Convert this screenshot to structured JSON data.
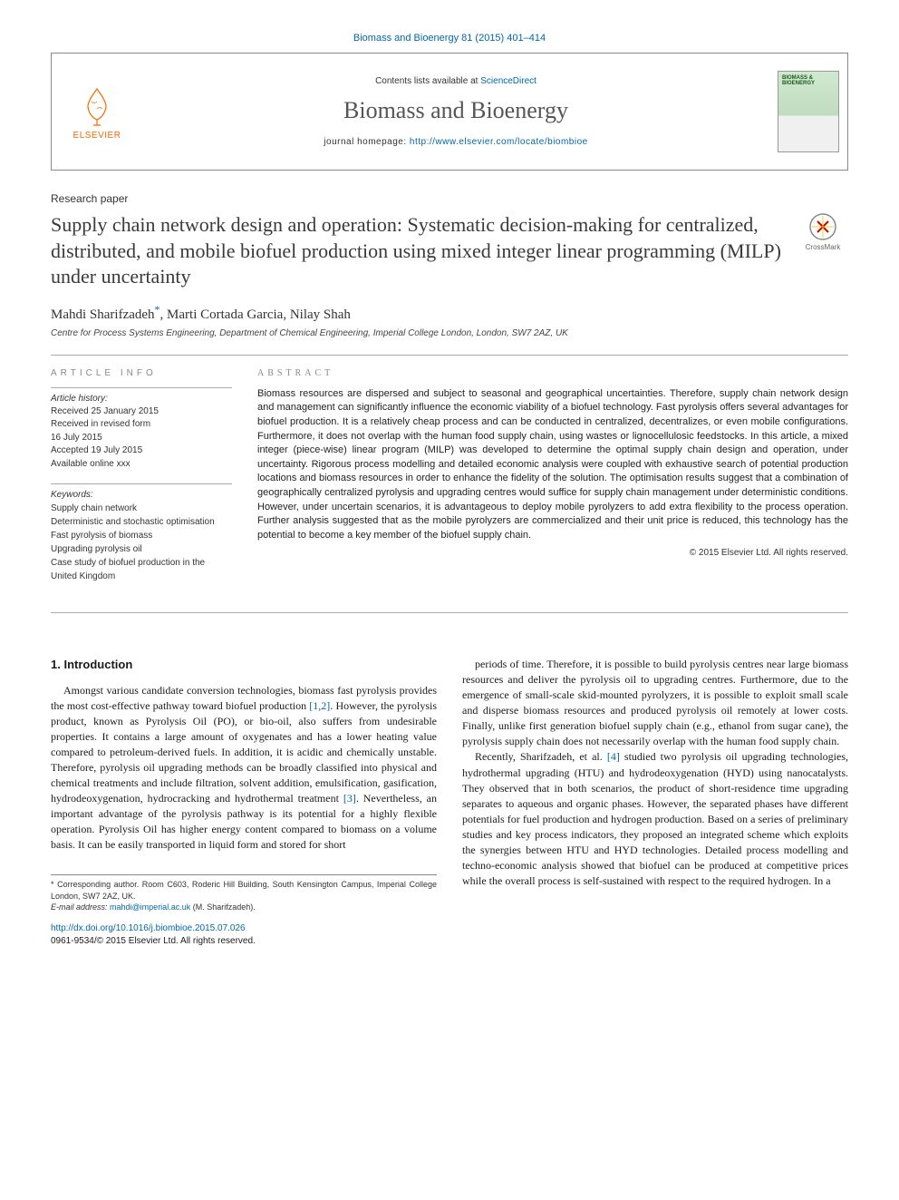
{
  "journal_ref": "Biomass and Bioenergy 81 (2015) 401–414",
  "header": {
    "contents_prefix": "Contents lists available at ",
    "contents_link": "ScienceDirect",
    "journal_name": "Biomass and Bioenergy",
    "homepage_prefix": "journal homepage: ",
    "homepage_url": "http://www.elsevier.com/locate/biombioe",
    "publisher_label": "ELSEVIER",
    "cover_text": "BIOMASS & BIOENERGY"
  },
  "paper_type": "Research paper",
  "title": "Supply chain network design and operation: Systematic decision-making for centralized, distributed, and mobile biofuel production using mixed integer linear programming (MILP) under uncertainty",
  "crossmark_label": "CrossMark",
  "authors_html": "Mahdi Sharifzadeh<span class=\"corr-star\">*</span>, Marti Cortada Garcia, Nilay Shah",
  "affiliation": "Centre for Process Systems Engineering, Department of Chemical Engineering, Imperial College London, London, SW7 2AZ, UK",
  "article_info": {
    "heading": "ARTICLE INFO",
    "history_label": "Article history:",
    "history_lines": [
      "Received 25 January 2015",
      "Received in revised form",
      "16 July 2015",
      "Accepted 19 July 2015",
      "Available online xxx"
    ],
    "keywords_label": "Keywords:",
    "keywords": [
      "Supply chain network",
      "Deterministic and stochastic optimisation",
      "Fast pyrolysis of biomass",
      "Upgrading pyrolysis oil",
      "Case study of biofuel production in the United Kingdom"
    ]
  },
  "abstract": {
    "heading": "ABSTRACT",
    "text": "Biomass resources are dispersed and subject to seasonal and geographical uncertainties. Therefore, supply chain network design and management can significantly influence the economic viability of a biofuel technology. Fast pyrolysis offers several advantages for biofuel production. It is a relatively cheap process and can be conducted in centralized, decentralizes, or even mobile configurations. Furthermore, it does not overlap with the human food supply chain, using wastes or lignocellulosic feedstocks. In this article, a mixed integer (piece-wise) linear program (MILP) was developed to determine the optimal supply chain design and operation, under uncertainty. Rigorous process modelling and detailed economic analysis were coupled with exhaustive search of potential production locations and biomass resources in order to enhance the fidelity of the solution. The optimisation results suggest that a combination of geographically centralized pyrolysis and upgrading centres would suffice for supply chain management under deterministic conditions. However, under uncertain scenarios, it is advantageous to deploy mobile pyrolyzers to add extra flexibility to the process operation. Further analysis suggested that as the mobile pyrolyzers are commercialized and their unit price is reduced, this technology has the potential to become a key member of the biofuel supply chain.",
    "copyright": "© 2015 Elsevier Ltd. All rights reserved."
  },
  "body": {
    "section_heading": "1. Introduction",
    "col1_p1": "Amongst various candidate conversion technologies, biomass fast pyrolysis provides the most cost-effective pathway toward biofuel production <span class=\"cite\">[1,2]</span>. However, the pyrolysis product, known as Pyrolysis Oil (PO), or bio-oil, also suffers from undesirable properties. It contains a large amount of oxygenates and has a lower heating value compared to petroleum-derived fuels. In addition, it is acidic and chemically unstable. Therefore, pyrolysis oil upgrading methods can be broadly classified into physical and chemical treatments and include filtration, solvent addition, emulsification, gasification, hydrodeoxygenation, hydrocracking and hydrothermal treatment <span class=\"cite\">[3]</span>. Nevertheless, an important advantage of the pyrolysis pathway is its potential for a highly flexible operation. Pyrolysis Oil has higher energy content compared to biomass on a volume basis. It can be easily transported in liquid form and stored for short",
    "col2_p1": "periods of time. Therefore, it is possible to build pyrolysis centres near large biomass resources and deliver the pyrolysis oil to upgrading centres. Furthermore, due to the emergence of small-scale skid-mounted pyrolyzers, it is possible to exploit small scale and disperse biomass resources and produced pyrolysis oil remotely at lower costs. Finally, unlike first generation biofuel supply chain (e.g., ethanol from sugar cane), the pyrolysis supply chain does not necessarily overlap with the human food supply chain.",
    "col2_p2": "Recently, Sharifzadeh, et al. <span class=\"cite\">[4]</span> studied two pyrolysis oil upgrading technologies, hydrothermal upgrading (HTU) and hydrodeoxygenation (HYD) using nanocatalysts. They observed that in both scenarios, the product of short-residence time upgrading separates to aqueous and organic phases. However, the separated phases have different potentials for fuel production and hydrogen production. Based on a series of preliminary studies and key process indicators, they proposed an integrated scheme which exploits the synergies between HTU and HYD technologies. Detailed process modelling and techno-economic analysis showed that biofuel can be produced at competitive prices while the overall process is self-sustained with respect to the required hydrogen. In a"
  },
  "footnotes": {
    "corr": "* Corresponding author. Room C603, Roderic Hill Building, South Kensington Campus, Imperial College London, SW7 2AZ, UK.",
    "email_label": "E-mail address: ",
    "email": "mahdi@imperial.ac.uk",
    "email_suffix": " (M. Sharifzadeh)."
  },
  "doi": {
    "url": "http://dx.doi.org/10.1016/j.biombioe.2015.07.026",
    "issn_line": "0961-9534/© 2015 Elsevier Ltd. All rights reserved."
  },
  "colors": {
    "link": "#0066aa",
    "publisher": "#ff6600",
    "rule": "#aaaaaa",
    "text": "#1a1a1a"
  }
}
